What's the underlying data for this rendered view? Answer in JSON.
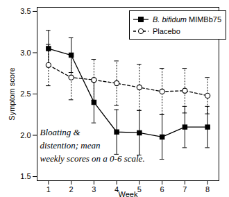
{
  "chart_data": {
    "type": "line",
    "x": [
      1,
      2,
      3,
      4,
      5,
      6,
      7,
      8
    ],
    "x_label": "Week",
    "y_label": "Symptom score",
    "xlim": [
      0.5,
      8.5
    ],
    "xticks": [
      1,
      2,
      3,
      4,
      5,
      6,
      7,
      8
    ],
    "ylim": [
      1.45,
      3.55
    ],
    "yticks": [
      {
        "value": 1.5,
        "label": "1.5"
      },
      {
        "value": 2,
        "label": "2.0"
      },
      {
        "value": 2.5,
        "label": "2.5"
      },
      {
        "value": 3,
        "label": "3.0"
      },
      {
        "value": 3.5,
        "label": "3.5"
      }
    ],
    "grid": false,
    "legend": "upper right",
    "annotation": "Bloating &\ndistention; mean\nweekly scores on a 0-6 scale.",
    "series": [
      {
        "name": "B. bifidum MIMBb75",
        "color": "#000000",
        "marker": "square",
        "line_style": "solid",
        "values": [
          3.05,
          2.97,
          2.4,
          2.04,
          2.03,
          1.98,
          2.1,
          2.1
        ],
        "error": [
          0.22,
          0.21,
          0.25,
          0.27,
          0.27,
          0.27,
          0.25,
          0.25
        ]
      },
      {
        "name": "Placebo",
        "color": "#000000",
        "marker": "open_circle",
        "line_style": "dashed",
        "values": [
          2.85,
          2.7,
          2.67,
          2.63,
          2.58,
          2.53,
          2.54,
          2.48
        ],
        "error": [
          0.25,
          0.27,
          0.25,
          0.27,
          0.28,
          0.28,
          0.27,
          0.22
        ]
      }
    ]
  }
}
